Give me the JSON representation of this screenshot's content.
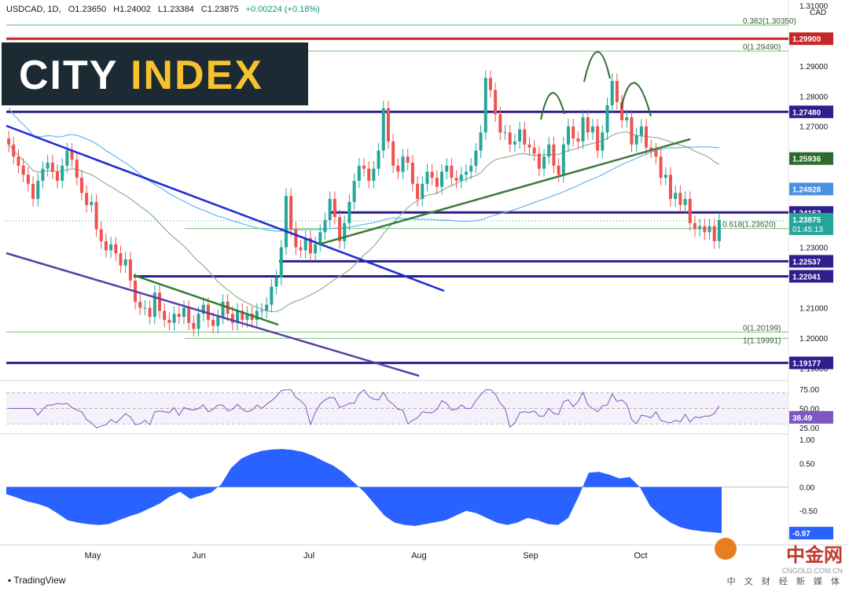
{
  "header": {
    "symbol": "USDCAD, 1D,",
    "open": "O1.23650",
    "high": "H1.24002",
    "low": "L1.23384",
    "close": "C1.23875",
    "change": "+0.00224 (+0.18%)"
  },
  "brand": {
    "part1": "CITY ",
    "part2": "INDEX"
  },
  "footer": {
    "tradingview": "TradingView"
  },
  "watermark": {
    "cn": "中金网",
    "url": "CNGOLD.COM.CN",
    "tagline": "中 文 财 经 新 媒 体"
  },
  "colors": {
    "up": "#26a69a",
    "down": "#ef5350",
    "red_level": "#c62828",
    "navy": "#2e1f8c",
    "blue": "#1e2bd6",
    "purple": "#5b3ea6",
    "green": "#2e7d32",
    "ma_gray": "#8fb08f",
    "ma_blue": "#64b5f6",
    "fib": "#4caf50",
    "rsi": "#7e57c2",
    "osc": "#2962ff"
  },
  "chart_data": [
    {
      "type": "candlestick",
      "title": "USDCAD, 1D",
      "currency_label": "CAD",
      "x_tick_labels": [
        "May",
        "Jun",
        "Jul",
        "Aug",
        "Sep",
        "Oct"
      ],
      "y_tick_labels": [
        "1.31000",
        "1.29000",
        "1.28000",
        "1.27000",
        "1.23000",
        "1.21000",
        "1.20000",
        "1.19000"
      ],
      "ylim": [
        1.1875,
        1.3105
      ],
      "last_price": "1.23875",
      "countdown": "01:45:13",
      "horizontal_levels": [
        {
          "label": "1.29900",
          "value": 1.299,
          "color": "red"
        },
        {
          "label": "1.27480",
          "value": 1.2748,
          "color": "navy"
        },
        {
          "label": "1.24152",
          "value": 1.24152,
          "color": "navy"
        },
        {
          "label": "1.22537",
          "value": 1.22537,
          "color": "navy"
        },
        {
          "label": "1.22041",
          "value": 1.22041,
          "color": "navy"
        },
        {
          "label": "1.19177",
          "value": 1.19177,
          "color": "navy"
        }
      ],
      "moving_averages": [
        {
          "label": "1.25936",
          "value": 1.25936,
          "color": "green"
        },
        {
          "label": "1.24928",
          "value": 1.24928,
          "color": "blue"
        }
      ],
      "fibonacci": [
        {
          "label": "0.382(1.30350)",
          "value": 1.3035
        },
        {
          "label": "0(1.29490)",
          "value": 1.2949
        },
        {
          "label": "0.618(1.23620)",
          "value": 1.2362
        },
        {
          "label": "0(1.20199)",
          "value": 1.20199
        },
        {
          "label": "1(1.19991)",
          "value": 1.19991
        }
      ],
      "closes": [
        1.264,
        1.26,
        1.257,
        1.254,
        1.251,
        1.246,
        1.252,
        1.256,
        1.258,
        1.255,
        1.252,
        1.257,
        1.262,
        1.259,
        1.253,
        1.248,
        1.244,
        1.245,
        1.236,
        1.232,
        1.229,
        1.231,
        1.228,
        1.224,
        1.226,
        1.219,
        1.212,
        1.21,
        1.21,
        1.207,
        1.215,
        1.209,
        1.206,
        1.205,
        1.208,
        1.207,
        1.21,
        1.205,
        1.203,
        1.208,
        1.211,
        1.206,
        1.204,
        1.207,
        1.212,
        1.208,
        1.205,
        1.209,
        1.206,
        1.208,
        1.206,
        1.209,
        1.209,
        1.211,
        1.217,
        1.22,
        1.23,
        1.247,
        1.236,
        1.23,
        1.229,
        1.233,
        1.228,
        1.231,
        1.235,
        1.239,
        1.246,
        1.24,
        1.232,
        1.238,
        1.245,
        1.252,
        1.257,
        1.256,
        1.252,
        1.256,
        1.262,
        1.276,
        1.265,
        1.257,
        1.255,
        1.26,
        1.258,
        1.251,
        1.246,
        1.251,
        1.255,
        1.253,
        1.25,
        1.255,
        1.257,
        1.253,
        1.252,
        1.254,
        1.255,
        1.257,
        1.262,
        1.268,
        1.286,
        1.282,
        1.274,
        1.268,
        1.268,
        1.264,
        1.265,
        1.269,
        1.264,
        1.263,
        1.261,
        1.256,
        1.26,
        1.264,
        1.257,
        1.254,
        1.264,
        1.27,
        1.266,
        1.265,
        1.273,
        1.268,
        1.27,
        1.262,
        1.268,
        1.277,
        1.285,
        1.278,
        1.272,
        1.273,
        1.264,
        1.267,
        1.27,
        1.263,
        1.262,
        1.26,
        1.253,
        1.254,
        1.246,
        1.248,
        1.244,
        1.246,
        1.238,
        1.236,
        1.237,
        1.235,
        1.237,
        1.232,
        1.239
      ]
    },
    {
      "type": "line",
      "name": "RSI",
      "y_tick_labels": [
        "75.00",
        "50.00",
        "25.00"
      ],
      "last_value": "38.49",
      "ylim": [
        18,
        85
      ]
    },
    {
      "type": "area",
      "name": "oscillator",
      "y_tick_labels": [
        "1.00",
        "0.50",
        "0.00",
        "-0.50"
      ],
      "last_value": "-0.97",
      "ylim": [
        -1.2,
        1.1
      ],
      "values": [
        -0.15,
        -0.22,
        -0.3,
        -0.35,
        -0.42,
        -0.55,
        -0.7,
        -0.75,
        -0.78,
        -0.8,
        -0.78,
        -0.7,
        -0.62,
        -0.55,
        -0.45,
        -0.35,
        -0.2,
        -0.1,
        -0.25,
        -0.18,
        -0.12,
        0.05,
        0.4,
        0.6,
        0.7,
        0.76,
        0.79,
        0.8,
        0.78,
        0.74,
        0.66,
        0.55,
        0.45,
        0.3,
        0.1,
        -0.1,
        -0.35,
        -0.6,
        -0.75,
        -0.8,
        -0.82,
        -0.78,
        -0.74,
        -0.7,
        -0.6,
        -0.5,
        -0.55,
        -0.65,
        -0.75,
        -0.8,
        -0.75,
        -0.65,
        -0.7,
        -0.78,
        -0.8,
        -0.65,
        -0.2,
        0.3,
        0.32,
        0.26,
        0.18,
        0.21,
        0.0,
        -0.4,
        -0.6,
        -0.75,
        -0.85,
        -0.9,
        -0.93,
        -0.95,
        -0.97
      ]
    }
  ]
}
